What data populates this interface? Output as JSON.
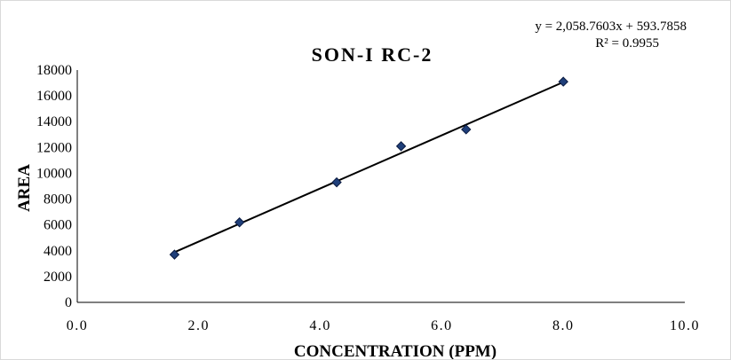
{
  "chart_data": {
    "type": "scatter",
    "title": "SON-I RC-2",
    "xlabel": "CONCENTRATION (PPM)",
    "ylabel": "AREA",
    "xlim": [
      0,
      10
    ],
    "ylim": [
      0,
      18000
    ],
    "x_ticks": [
      "0.0",
      "2.0",
      "4.0",
      "6.0",
      "8.0",
      "10.0"
    ],
    "x_tick_values": [
      0,
      2,
      4,
      6,
      8,
      10
    ],
    "y_ticks": [
      "0",
      "2000",
      "4000",
      "6000",
      "8000",
      "10000",
      "12000",
      "14000",
      "16000",
      "18000"
    ],
    "y_tick_values": [
      0,
      2000,
      4000,
      6000,
      8000,
      10000,
      12000,
      14000,
      16000,
      18000
    ],
    "grid": false,
    "series": [
      {
        "x": [
          1.6,
          2.67,
          4.27,
          5.33,
          6.4,
          8.0
        ],
        "y": [
          3700,
          6200,
          9300,
          12100,
          13400,
          17100
        ],
        "marker": "diamond",
        "color": "#1f3f7a"
      }
    ],
    "trendline": {
      "type": "linear",
      "slope": 2058.7603,
      "intercept": 593.7858,
      "x_range": [
        1.6,
        8.0
      ],
      "equation_label": "y = 2,058.7603x + 593.7858",
      "r2_label": "R² = 0.9955",
      "color": "#000000"
    }
  }
}
